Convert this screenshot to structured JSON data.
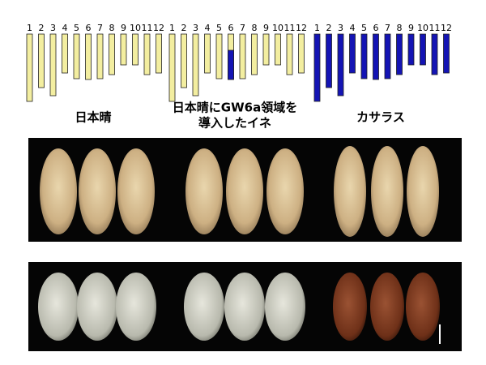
{
  "panels": [
    {
      "chromosome_labels": [
        "1",
        "2",
        "3",
        "4",
        "5",
        "6",
        "7",
        "8",
        "9",
        "10",
        "11",
        "12"
      ],
      "label_lines": [
        "日本晴"
      ]
    },
    {
      "chromosome_labels": [
        "1",
        "2",
        "3",
        "4",
        "5",
        "6",
        "7",
        "8",
        "9",
        "10",
        "11",
        "12"
      ],
      "label_lines": [
        "日本晴にGW6a領域を",
        "導入したイネ"
      ]
    },
    {
      "chromosome_labels": [
        "1",
        "2",
        "3",
        "4",
        "5",
        "6",
        "7",
        "8",
        "9",
        "10",
        "11",
        "12"
      ],
      "label_lines": [
        "カサラス"
      ]
    }
  ]
}
